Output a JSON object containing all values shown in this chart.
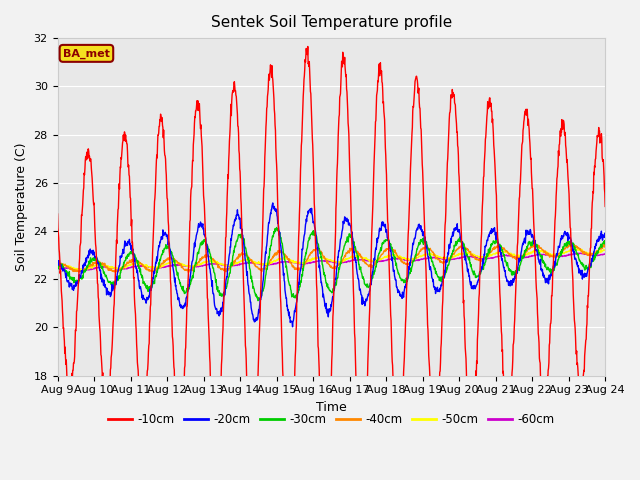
{
  "title": "Sentek Soil Temperature profile",
  "xlabel": "Time",
  "ylabel": "Soil Temperature (C)",
  "ylim": [
    18,
    32
  ],
  "xlim": [
    0,
    360
  ],
  "xtick_labels": [
    "Aug 9",
    "Aug 10",
    "Aug 11",
    "Aug 12",
    "Aug 13",
    "Aug 14",
    "Aug 15",
    "Aug 16",
    "Aug 17",
    "Aug 18",
    "Aug 19",
    "Aug 20",
    "Aug 21",
    "Aug 22",
    "Aug 23",
    "Aug 24"
  ],
  "xtick_positions": [
    0,
    24,
    48,
    72,
    96,
    120,
    144,
    168,
    192,
    216,
    240,
    264,
    288,
    312,
    336,
    360
  ],
  "ba_met_label": "BA_met",
  "legend_entries": [
    "-10cm",
    "-20cm",
    "-30cm",
    "-40cm",
    "-50cm",
    "-60cm"
  ],
  "line_colors": [
    "#ff0000",
    "#0000ff",
    "#00cc00",
    "#ff8800",
    "#ffff00",
    "#cc00cc"
  ],
  "bg_color": "#e8e8e8",
  "fig_bg_color": "#f2f2f2",
  "title_fontsize": 11,
  "label_fontsize": 9,
  "tick_fontsize": 8
}
